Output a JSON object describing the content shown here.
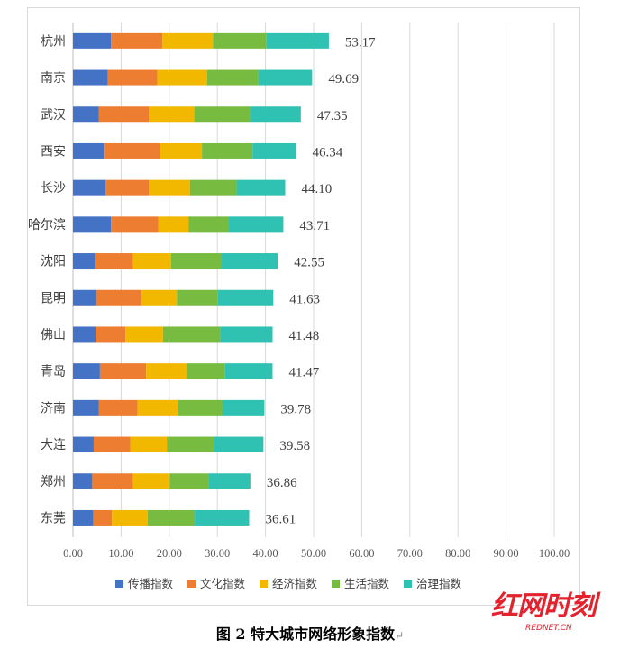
{
  "chart_data": {
    "type": "bar",
    "orientation": "horizontal",
    "stacked": true,
    "title": "图 2 特大城市网络形象指数",
    "categories": [
      "杭州",
      "南京",
      "武汉",
      "西安",
      "长沙",
      "哈尔滨",
      "沈阳",
      "昆明",
      "佛山",
      "青岛",
      "济南",
      "大连",
      "郑州",
      "东莞"
    ],
    "totals": [
      "53.17",
      "49.69",
      "47.35",
      "46.34",
      "44.10",
      "43.71",
      "42.55",
      "41.63",
      "41.48",
      "41.47",
      "39.78",
      "39.58",
      "36.86",
      "36.61"
    ],
    "series": [
      {
        "name": "传播指数",
        "color": "#4472c4",
        "values": [
          7.9,
          7.2,
          5.4,
          6.4,
          6.8,
          7.9,
          4.5,
          4.8,
          4.7,
          5.6,
          5.4,
          4.3,
          4.0,
          4.2
        ]
      },
      {
        "name": "文化指数",
        "color": "#ed7d31",
        "values": [
          10.7,
          10.3,
          10.4,
          11.6,
          9.0,
          9.8,
          8.0,
          9.4,
          6.2,
          9.6,
          8.0,
          7.6,
          8.5,
          3.9
        ]
      },
      {
        "name": "经济指数",
        "color": "#f2b800",
        "values": [
          10.5,
          10.4,
          9.4,
          8.8,
          8.5,
          6.3,
          7.9,
          7.4,
          7.8,
          8.5,
          8.5,
          7.6,
          7.6,
          7.4
        ]
      },
      {
        "name": "生活指数",
        "color": "#77bb41",
        "values": [
          11.1,
          10.6,
          11.7,
          10.5,
          9.7,
          8.4,
          10.5,
          8.5,
          11.9,
          7.9,
          9.3,
          9.9,
          8.1,
          9.8
        ]
      },
      {
        "name": "治理指数",
        "color": "#2fc1b2",
        "values": [
          12.97,
          11.19,
          10.45,
          9.04,
          10.1,
          11.31,
          11.65,
          11.53,
          10.88,
          9.87,
          8.58,
          10.18,
          8.66,
          11.31
        ]
      }
    ],
    "xlim": [
      0,
      100
    ],
    "xticks": [
      "0.00",
      "10.00",
      "20.00",
      "30.00",
      "40.00",
      "50.00",
      "60.00",
      "70.00",
      "80.00",
      "90.00",
      "100.00"
    ],
    "grid": true,
    "legend_position": "bottom"
  },
  "caption": {
    "text": "图 2 特大城市网络形象指数",
    "return_mark": "↵"
  },
  "watermark": {
    "main": "红网时刻",
    "sub": "REDNET.CN"
  }
}
